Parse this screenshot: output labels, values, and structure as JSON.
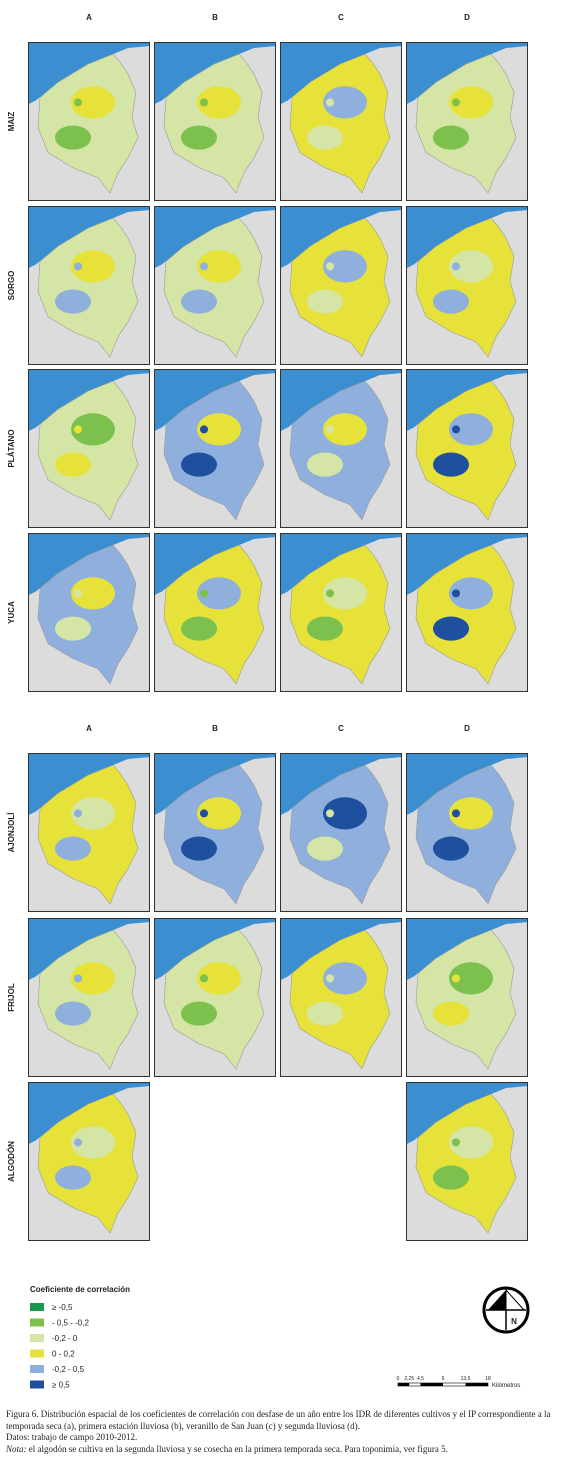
{
  "top_grid": {
    "columns": [
      "A",
      "B",
      "C",
      "D"
    ],
    "rows": [
      "MAIZ",
      "SORGO",
      "PLÁTANO",
      "YUCA"
    ]
  },
  "bottom_grid": {
    "columns": [
      "A",
      "B",
      "C",
      "D"
    ],
    "rows": [
      "AJONJOLÍ",
      "FRIJOL",
      "ALGODÓN"
    ]
  },
  "legend": {
    "title": "Coeficiente de correlación",
    "items": [
      {
        "label": "≥ -0,5",
        "color": "#1a9850"
      },
      {
        "label": "- 0,5 - -0,2",
        "color": "#7cc04e"
      },
      {
        "label": "-0,2 - 0",
        "color": "#d5e5a6"
      },
      {
        "label": "0 - 0,2",
        "color": "#e6e23a"
      },
      {
        "label": "-0,2 - 0,5",
        "color": "#8fb0dc"
      },
      {
        "label": "≥ 0,5",
        "color": "#1f4f9f"
      }
    ]
  },
  "north_arrow": "N",
  "scale_bar": {
    "labels": [
      "0",
      "2,25",
      "4,5",
      "9",
      "13,5",
      "18"
    ],
    "unit": "Kilómetros"
  },
  "caption": {
    "figure": "Figura 6. Distribución espacial de los coeficientes de correlación con desfase de un año entre los IDR de diferentes cultivos y el IP correspondiente a la temporada seca (a), primera estación lluviosa (b), veranillo de San Juan (c) y segunda lluviosa (d).",
    "source": "Datos: trabajo de campo 2010-2012.",
    "note_label": "Nota:",
    "note": "el algodón se cultiva en la segunda lluviosa y se cosecha en la primera temporada seca. Para toponimia, ver figura 5."
  }
}
